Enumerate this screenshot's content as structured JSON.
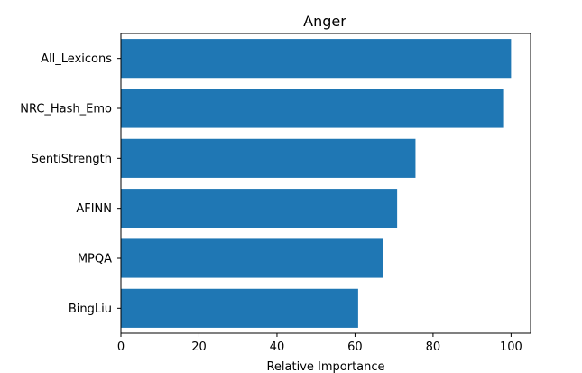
{
  "chart_data": {
    "type": "bar",
    "orientation": "horizontal",
    "title": "Anger",
    "xlabel": "Relative Importance",
    "ylabel": "",
    "categories": [
      "All_Lexicons",
      "NRC_Hash_Emo",
      "SentiStrength",
      "AFINN",
      "MPQA",
      "BingLiu"
    ],
    "values": [
      100,
      98.2,
      75.5,
      70.8,
      67.3,
      60.8
    ],
    "xlim": [
      0,
      105
    ],
    "xticks": [
      0,
      20,
      40,
      60,
      80,
      100
    ],
    "xtick_labels": [
      "0",
      "20",
      "40",
      "60",
      "80",
      "100"
    ],
    "bar_color": "#1f77b4",
    "grid": false,
    "legend": "none"
  }
}
